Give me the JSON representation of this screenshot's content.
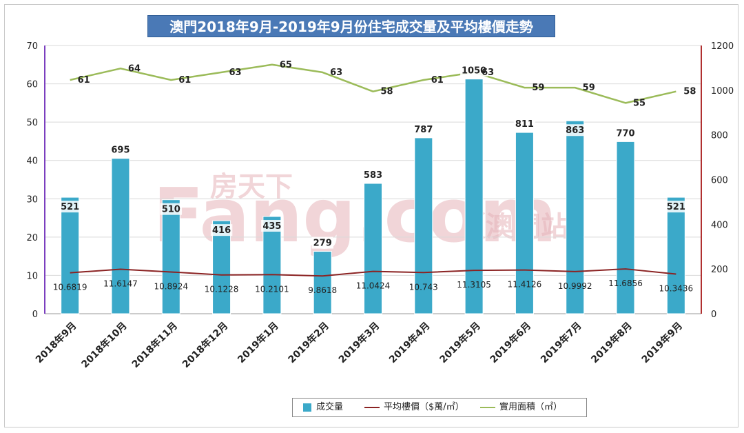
{
  "chart_data": {
    "type": "bar",
    "title": "澳門2018年9月-2019年9月份住宅成交量及平均樓價走勢",
    "categories": [
      "2018年9月",
      "2018年10月",
      "2018年11月",
      "2018年12月",
      "2019年1月",
      "2019年2月",
      "2019年3月",
      "2019年4月",
      "2019年5月",
      "2019年6月",
      "2019年7月",
      "2019年8月",
      "2019年9月"
    ],
    "left_axis": {
      "min": 0,
      "max": 70,
      "ticks": [
        "0",
        "10",
        "20",
        "30",
        "40",
        "50",
        "60",
        "70"
      ],
      "tick_values": [
        0,
        10,
        20,
        30,
        40,
        50,
        60,
        70
      ]
    },
    "right_axis": {
      "min": 0,
      "max": 1200,
      "ticks": [
        "0",
        "200",
        "400",
        "600",
        "800",
        "1000",
        "1200"
      ],
      "tick_values": [
        0,
        200,
        400,
        600,
        800,
        1000,
        1200
      ]
    },
    "grid": true,
    "legend_position": "bottom",
    "series": [
      {
        "name": "成交量",
        "type": "bar",
        "axis": "right",
        "color": "#3ba9c9",
        "values": [
          521,
          695,
          510,
          416,
          435,
          279,
          583,
          787,
          1050,
          811,
          863,
          770,
          521
        ],
        "labels": [
          "521",
          "695",
          "510",
          "416",
          "435",
          "279",
          "583",
          "787",
          "1050",
          "811",
          "863",
          "770",
          "521"
        ]
      },
      {
        "name": "平均樓價（$萬/㎡）",
        "type": "line",
        "axis": "left",
        "color": "#8b2323",
        "values": [
          10.6819,
          11.6147,
          10.8924,
          10.1228,
          10.2101,
          9.8618,
          11.0424,
          10.743,
          11.3105,
          11.4126,
          10.9992,
          11.6856,
          10.3436
        ],
        "labels": [
          "10.6819",
          "11.6147",
          "10.8924",
          "10.1228",
          "10.2101",
          "9.8618",
          "11.0424",
          "10.743",
          "11.3105",
          "11.4126",
          "10.9992",
          "11.6856",
          "10.3436"
        ]
      },
      {
        "name": "實用面積（㎡）",
        "type": "line",
        "axis": "left",
        "color": "#9bbb59",
        "values": [
          61,
          64,
          61,
          63,
          65,
          63,
          58,
          61,
          63,
          59,
          59,
          55,
          58
        ],
        "labels": [
          "61",
          "64",
          "61",
          "63",
          "65",
          "63",
          "58",
          "61",
          "63",
          "59",
          "59",
          "55",
          "58"
        ]
      }
    ]
  },
  "watermark": {
    "brand": "Fang.com",
    "chinese": "房天下",
    "site": "（澳門站）"
  }
}
